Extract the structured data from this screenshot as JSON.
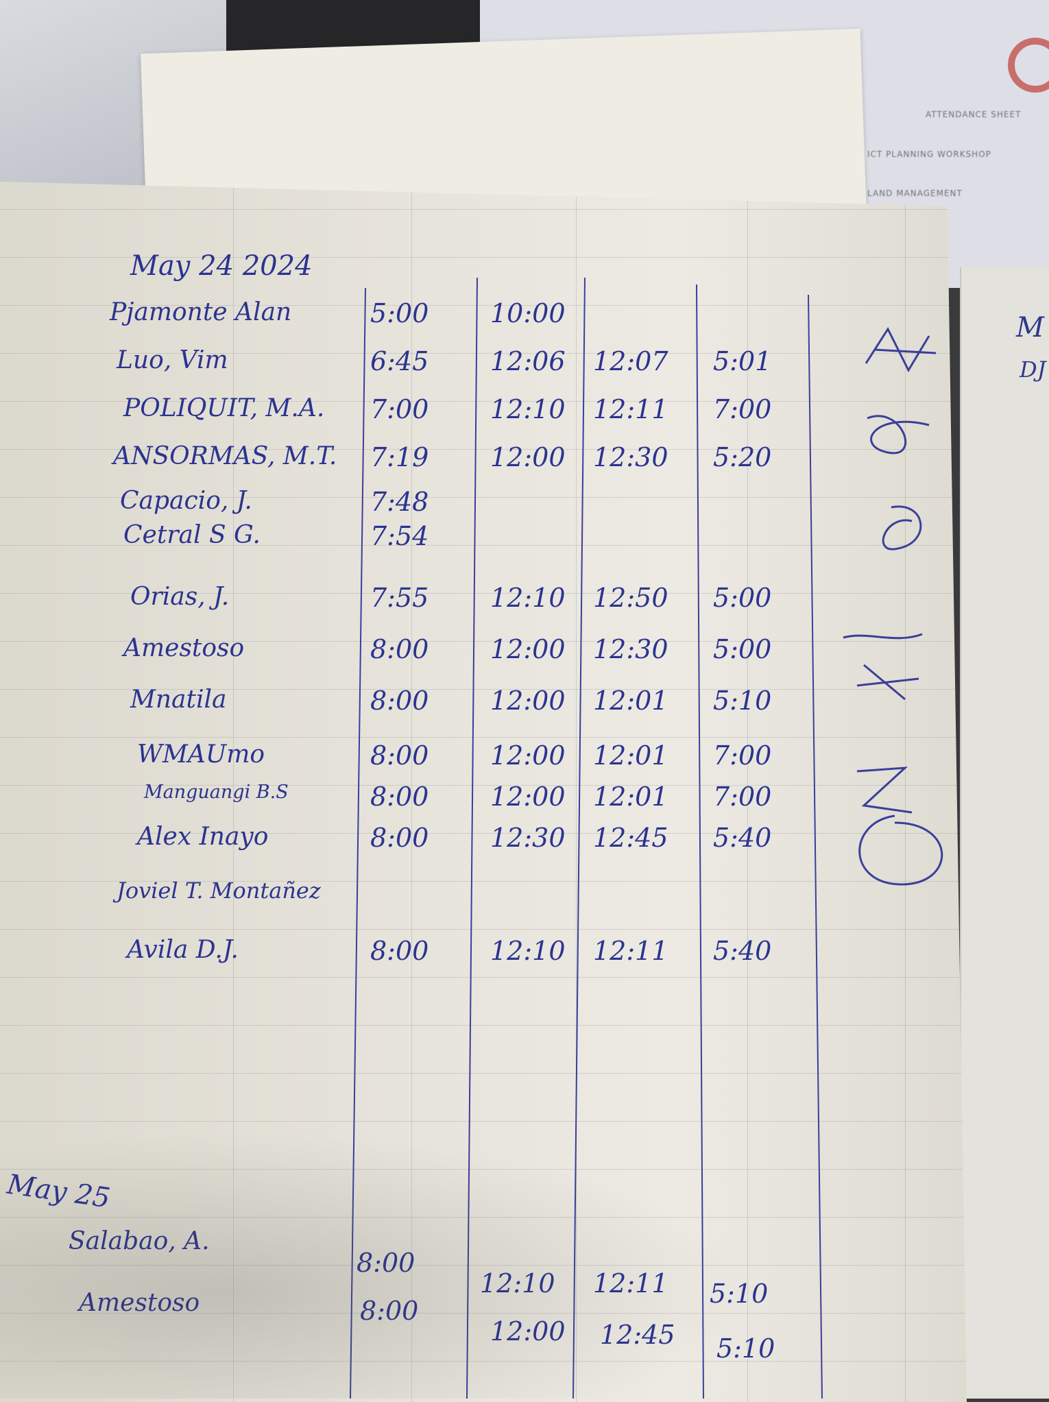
{
  "background_form": {
    "lines": [
      "ATTENDANCE SHEET",
      "ICT PLANNING WORKSHOP",
      "LAND MANAGEMENT"
    ]
  },
  "right_notebook": {
    "text": [
      "M",
      "DJ"
    ]
  },
  "log": {
    "sections": [
      {
        "date": "May 24 2024",
        "rows": [
          {
            "name": "Pjamonte Alan",
            "in_am": "5:00",
            "out_am": "10:00",
            "in_pm": "",
            "out_pm": ""
          },
          {
            "name": "Luo, Vim",
            "in_am": "6:45",
            "out_am": "12:06",
            "in_pm": "12:07",
            "out_pm": "5:01"
          },
          {
            "name": "POLIQUIT, M.A.",
            "in_am": "7:00",
            "out_am": "12:10",
            "in_pm": "12:11",
            "out_pm": "7:00"
          },
          {
            "name": "ANSORMAS, M.T.",
            "in_am": "7:19",
            "out_am": "12:00",
            "in_pm": "12:30",
            "out_pm": "5:20"
          },
          {
            "name": "Capacio, J.",
            "in_am": "7:48",
            "out_am": "",
            "in_pm": "",
            "out_pm": ""
          },
          {
            "name": "Cetral S G.",
            "in_am": "7:54",
            "out_am": "",
            "in_pm": "",
            "out_pm": ""
          },
          {
            "name": "Orias, J.",
            "in_am": "7:55",
            "out_am": "12:10",
            "in_pm": "12:50",
            "out_pm": "5:00"
          },
          {
            "name": "Amestoso",
            "in_am": "8:00",
            "out_am": "12:00",
            "in_pm": "12:30",
            "out_pm": "5:00"
          },
          {
            "name": "Mnatila",
            "in_am": "8:00",
            "out_am": "12:00",
            "in_pm": "12:01",
            "out_pm": "5:10"
          },
          {
            "name": "WMAUmo",
            "in_am": "8:00",
            "out_am": "12:00",
            "in_pm": "12:01",
            "out_pm": "7:00"
          },
          {
            "name": "Manguangi B.S",
            "in_am": "8:00",
            "out_am": "12:00",
            "in_pm": "12:01",
            "out_pm": "7:00"
          },
          {
            "name": "Alex Inayo",
            "in_am": "8:00",
            "out_am": "12:30",
            "in_pm": "12:45",
            "out_pm": "5:40"
          },
          {
            "name": "Joviel T. Montañez",
            "in_am": "",
            "out_am": "",
            "in_pm": "",
            "out_pm": ""
          },
          {
            "name": "Avila D.J.",
            "in_am": "8:00",
            "out_am": "12:10",
            "in_pm": "12:11",
            "out_pm": "5:40"
          }
        ]
      },
      {
        "date": "May 25",
        "rows": [
          {
            "name": "Salabao, A.",
            "in_am": "8:00",
            "out_am": "12:10",
            "in_pm": "12:11",
            "out_pm": "5:10"
          },
          {
            "name": "Amestoso",
            "in_am": "8:00",
            "out_am": "12:00",
            "in_pm": "12:45",
            "out_pm": "5:10"
          }
        ]
      }
    ]
  },
  "colors": {
    "ink": "#2b3390",
    "paper": "#e6e3da",
    "rule_line": "#3a3f9a"
  }
}
